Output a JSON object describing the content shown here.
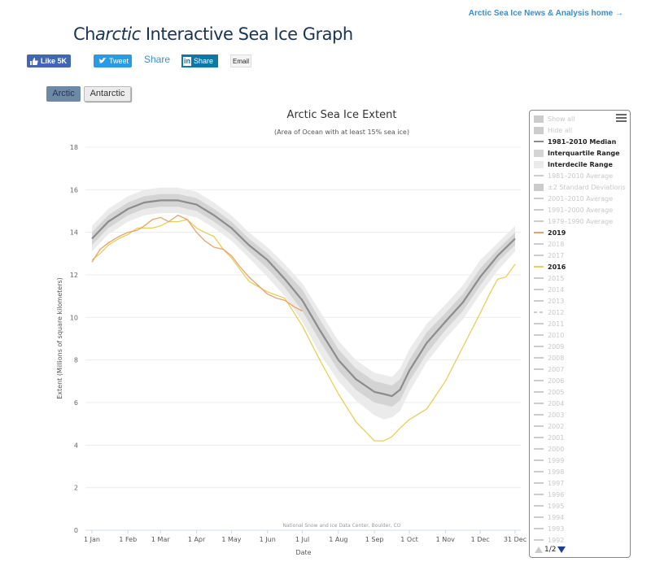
{
  "header": {
    "home_link": "Arctic Sea Ice News & Analysis home →",
    "title_prefix": "Ch",
    "title_italic": "arctic",
    "title_rest": " Interactive Sea Ice Graph"
  },
  "share": {
    "facebook": "Like 5K",
    "twitter": "Tweet",
    "share_text": "Share",
    "linkedin_logo": "in",
    "linkedin": "Share",
    "email": "Email"
  },
  "region_tabs": [
    {
      "label": "Arctic",
      "active": true
    },
    {
      "label": "Antarctic",
      "active": false
    }
  ],
  "colors": {
    "median": "#8c8c8c",
    "interquartile": "#d4d4d4",
    "interdecile": "#ebebeb",
    "y2019": "#e8a26b",
    "y2016": "#e6cf5a",
    "legend_off": "#cccccc"
  },
  "legend": {
    "items": [
      {
        "label": "Show all",
        "symbol": "box",
        "active": false
      },
      {
        "label": "Hide all",
        "symbol": "box",
        "active": false
      },
      {
        "label": "1981–2010 Median",
        "symbol": "line",
        "active": true,
        "color": "#8c8c8c"
      },
      {
        "label": "Interquartile Range",
        "symbol": "box",
        "active": true,
        "color": "#d4d4d4"
      },
      {
        "label": "Interdecile Range",
        "symbol": "box",
        "active": true,
        "color": "#ebebeb"
      },
      {
        "label": "1981–2010 Average",
        "symbol": "line",
        "active": false
      },
      {
        "label": "±2 Standard Deviations",
        "symbol": "box",
        "active": false
      },
      {
        "label": "2001–2010 Average",
        "symbol": "line",
        "active": false
      },
      {
        "label": "1991–2000 Average",
        "symbol": "line",
        "active": false
      },
      {
        "label": "1979–1990 Average",
        "symbol": "line",
        "active": false
      },
      {
        "label": "2019",
        "symbol": "line",
        "active": true,
        "color": "#e8a26b"
      },
      {
        "label": "2018",
        "symbol": "line",
        "active": false
      },
      {
        "label": "2017",
        "symbol": "line",
        "active": false
      },
      {
        "label": "2016",
        "symbol": "line",
        "active": true,
        "color": "#e6cf5a"
      },
      {
        "label": "2015",
        "symbol": "line",
        "active": false
      },
      {
        "label": "2014",
        "symbol": "line",
        "active": false
      },
      {
        "label": "2013",
        "symbol": "line",
        "active": false
      },
      {
        "label": "2012",
        "symbol": "dash",
        "active": false
      },
      {
        "label": "2011",
        "symbol": "line",
        "active": false
      },
      {
        "label": "2010",
        "symbol": "line",
        "active": false
      },
      {
        "label": "2009",
        "symbol": "line",
        "active": false
      },
      {
        "label": "2008",
        "symbol": "line",
        "active": false
      },
      {
        "label": "2007",
        "symbol": "line",
        "active": false
      },
      {
        "label": "2006",
        "symbol": "line",
        "active": false
      },
      {
        "label": "2005",
        "symbol": "line",
        "active": false
      },
      {
        "label": "2004",
        "symbol": "line",
        "active": false
      },
      {
        "label": "2003",
        "symbol": "line",
        "active": false
      },
      {
        "label": "2002",
        "symbol": "line",
        "active": false
      },
      {
        "label": "2001",
        "symbol": "line",
        "active": false
      },
      {
        "label": "2000",
        "symbol": "line",
        "active": false
      },
      {
        "label": "1999",
        "symbol": "line",
        "active": false
      },
      {
        "label": "1998",
        "symbol": "line",
        "active": false
      },
      {
        "label": "1997",
        "symbol": "line",
        "active": false
      },
      {
        "label": "1996",
        "symbol": "line",
        "active": false
      },
      {
        "label": "1995",
        "symbol": "line",
        "active": false
      },
      {
        "label": "1994",
        "symbol": "line",
        "active": false
      },
      {
        "label": "1993",
        "symbol": "line",
        "active": false
      },
      {
        "label": "1992",
        "symbol": "line",
        "active": false
      }
    ],
    "pager": "1/2"
  },
  "chart_data": {
    "type": "line",
    "title": "Arctic Sea Ice Extent",
    "subtitle": "(Area of Ocean with at least 15% sea ice)",
    "xlabel": "Date",
    "ylabel": "Extent (Millions of square kilometers)",
    "credit": "National Snow and Ice Data Center, Boulder, CO",
    "ylim": [
      0,
      18
    ],
    "xlim_day": [
      1,
      365
    ],
    "yticks": [
      0,
      2,
      4,
      6,
      8,
      10,
      12,
      14,
      16,
      18
    ],
    "xticks": [
      {
        "label": "1 Jan",
        "day": 1
      },
      {
        "label": "1 Feb",
        "day": 32
      },
      {
        "label": "1 Mar",
        "day": 60
      },
      {
        "label": "1 Apr",
        "day": 91
      },
      {
        "label": "1 May",
        "day": 121
      },
      {
        "label": "1 Jun",
        "day": 152
      },
      {
        "label": "1 Jul",
        "day": 182
      },
      {
        "label": "1 Aug",
        "day": 213
      },
      {
        "label": "1 Sep",
        "day": 244
      },
      {
        "label": "1 Oct",
        "day": 274
      },
      {
        "label": "1 Nov",
        "day": 305
      },
      {
        "label": "1 Dec",
        "day": 335
      },
      {
        "label": "31 Dec",
        "day": 365
      }
    ],
    "grid": true,
    "x_days": [
      1,
      15,
      32,
      46,
      60,
      75,
      91,
      106,
      121,
      136,
      152,
      167,
      182,
      197,
      213,
      228,
      244,
      252,
      259,
      266,
      274,
      289,
      305,
      320,
      335,
      350,
      365
    ],
    "series": [
      {
        "name": "1981–2010 Median",
        "values": [
          13.7,
          14.5,
          15.1,
          15.4,
          15.5,
          15.5,
          15.3,
          14.8,
          14.2,
          13.4,
          12.7,
          11.8,
          10.8,
          9.4,
          8.0,
          7.1,
          6.5,
          6.4,
          6.3,
          6.6,
          7.5,
          8.8,
          9.8,
          10.7,
          11.9,
          12.9,
          13.7
        ]
      },
      {
        "name": "Interquartile Range low",
        "values": [
          13.4,
          14.2,
          14.8,
          15.1,
          15.2,
          15.2,
          15.0,
          14.5,
          13.9,
          13.1,
          12.3,
          11.4,
          10.3,
          8.9,
          7.5,
          6.6,
          6.0,
          5.9,
          5.8,
          6.1,
          7.0,
          8.3,
          9.4,
          10.3,
          11.5,
          12.6,
          13.4
        ]
      },
      {
        "name": "Interquartile Range high",
        "values": [
          14.0,
          14.8,
          15.4,
          15.7,
          15.8,
          15.8,
          15.6,
          15.1,
          14.5,
          13.7,
          13.0,
          12.2,
          11.3,
          9.9,
          8.5,
          7.6,
          7.0,
          6.9,
          6.8,
          7.1,
          8.0,
          9.3,
          10.2,
          11.1,
          12.3,
          13.2,
          14.0
        ]
      },
      {
        "name": "Interdecile Range low",
        "values": [
          13.1,
          13.9,
          14.5,
          14.8,
          14.9,
          14.9,
          14.7,
          14.2,
          13.6,
          12.8,
          11.9,
          11.0,
          9.8,
          8.3,
          7.0,
          6.1,
          5.4,
          5.2,
          5.3,
          5.6,
          6.5,
          7.9,
          9.0,
          9.9,
          11.1,
          12.2,
          13.1
        ]
      },
      {
        "name": "Interdecile Range high",
        "values": [
          14.3,
          15.1,
          15.7,
          16.0,
          16.1,
          16.1,
          15.9,
          15.4,
          14.8,
          14.0,
          13.3,
          12.5,
          11.6,
          10.3,
          8.9,
          8.0,
          7.4,
          7.3,
          7.2,
          7.6,
          8.5,
          9.7,
          10.6,
          11.5,
          12.7,
          13.5,
          14.3
        ]
      },
      {
        "name": "2019",
        "x_days": [
          1,
          8,
          15,
          24,
          32,
          40,
          46,
          53,
          60,
          67,
          75,
          83,
          91,
          98,
          106,
          114,
          121,
          128,
          136,
          144,
          152,
          160,
          167,
          175,
          182
        ],
        "values": [
          12.6,
          13.2,
          13.5,
          13.8,
          14.0,
          14.1,
          14.3,
          14.6,
          14.7,
          14.5,
          14.8,
          14.6,
          14.0,
          13.6,
          13.3,
          13.2,
          12.9,
          12.4,
          11.9,
          11.5,
          11.1,
          10.9,
          10.8,
          10.5,
          10.3
        ]
      },
      {
        "name": "2016",
        "x_days": [
          1,
          8,
          15,
          24,
          32,
          40,
          46,
          53,
          60,
          67,
          75,
          83,
          91,
          98,
          106,
          114,
          121,
          136,
          152,
          167,
          182,
          197,
          213,
          228,
          244,
          252,
          259,
          266,
          274,
          289,
          305,
          320,
          335,
          343,
          350,
          357,
          365
        ],
        "values": [
          12.7,
          13.0,
          13.4,
          13.7,
          13.9,
          14.2,
          14.2,
          14.2,
          14.3,
          14.5,
          14.5,
          14.6,
          14.2,
          14.0,
          13.8,
          13.2,
          12.8,
          11.7,
          11.2,
          10.9,
          9.6,
          8.0,
          6.4,
          5.1,
          4.2,
          4.2,
          4.4,
          4.8,
          5.2,
          5.7,
          7.0,
          8.6,
          10.2,
          11.1,
          11.8,
          11.9,
          12.5
        ]
      }
    ]
  }
}
